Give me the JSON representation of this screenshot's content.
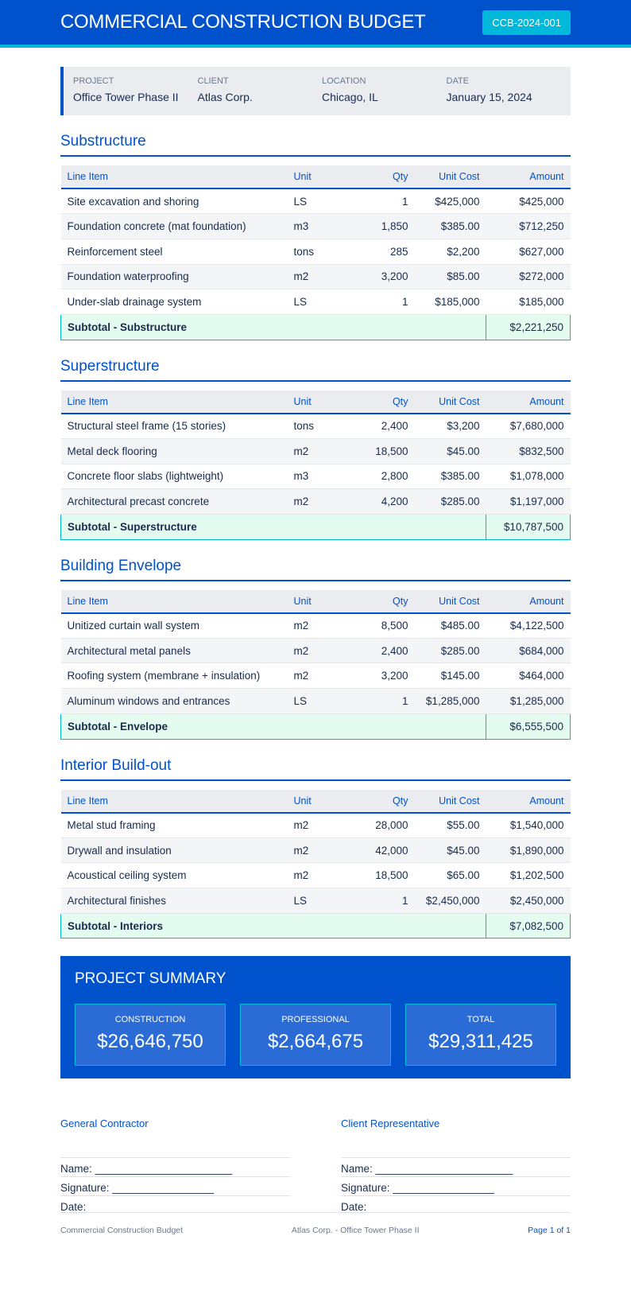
{
  "header": {
    "title": "COMMERCIAL CONSTRUCTION BUDGET",
    "doc_id": "CCB-2024-001"
  },
  "info": [
    {
      "label": "PROJECT",
      "value": "Office Tower Phase II"
    },
    {
      "label": "CLIENT",
      "value": "Atlas Corp."
    },
    {
      "label": "LOCATION",
      "value": "Chicago, IL"
    },
    {
      "label": "DATE",
      "value": "January 15, 2024"
    }
  ],
  "columns": [
    "Line Item",
    "Unit",
    "Qty",
    "Unit Cost",
    "Amount"
  ],
  "sections": [
    {
      "title": "Substructure",
      "rows": [
        [
          "Site excavation and shoring",
          "LS",
          "1",
          "$425,000",
          "$425,000"
        ],
        [
          "Foundation concrete (mat foundation)",
          "m3",
          "1,850",
          "$385.00",
          "$712,250"
        ],
        [
          "Reinforcement steel",
          "tons",
          "285",
          "$2,200",
          "$627,000"
        ],
        [
          "Foundation waterproofing",
          "m2",
          "3,200",
          "$85.00",
          "$272,000"
        ],
        [
          "Under-slab drainage system",
          "LS",
          "1",
          "$185,000",
          "$185,000"
        ]
      ],
      "subtotal_label": "Subtotal - Substructure",
      "subtotal": "$2,221,250"
    },
    {
      "title": "Superstructure",
      "rows": [
        [
          "Structural steel frame (15 stories)",
          "tons",
          "2,400",
          "$3,200",
          "$7,680,000"
        ],
        [
          "Metal deck flooring",
          "m2",
          "18,500",
          "$45.00",
          "$832,500"
        ],
        [
          "Concrete floor slabs (lightweight)",
          "m3",
          "2,800",
          "$385.00",
          "$1,078,000"
        ],
        [
          "Architectural precast concrete",
          "m2",
          "4,200",
          "$285.00",
          "$1,197,000"
        ]
      ],
      "subtotal_label": "Subtotal - Superstructure",
      "subtotal": "$10,787,500"
    },
    {
      "title": "Building Envelope",
      "rows": [
        [
          "Unitized curtain wall system",
          "m2",
          "8,500",
          "$485.00",
          "$4,122,500"
        ],
        [
          "Architectural metal panels",
          "m2",
          "2,400",
          "$285.00",
          "$684,000"
        ],
        [
          "Roofing system (membrane + insulation)",
          "m2",
          "3,200",
          "$145.00",
          "$464,000"
        ],
        [
          "Aluminum windows and entrances",
          "LS",
          "1",
          "$1,285,000",
          "$1,285,000"
        ]
      ],
      "subtotal_label": "Subtotal - Envelope",
      "subtotal": "$6,555,500"
    },
    {
      "title": "Interior Build-out",
      "rows": [
        [
          "Metal stud framing",
          "m2",
          "28,000",
          "$55.00",
          "$1,540,000"
        ],
        [
          "Drywall and insulation",
          "m2",
          "42,000",
          "$45.00",
          "$1,890,000"
        ],
        [
          "Acoustical ceiling system",
          "m2",
          "18,500",
          "$65.00",
          "$1,202,500"
        ],
        [
          "Architectural finishes",
          "LS",
          "1",
          "$2,450,000",
          "$2,450,000"
        ]
      ],
      "subtotal_label": "Subtotal - Interiors",
      "subtotal": "$7,082,500"
    }
  ],
  "summary": {
    "title": "PROJECT SUMMARY",
    "cards": [
      {
        "label": "CONSTRUCTION",
        "value": "$26,646,750"
      },
      {
        "label": "PROFESSIONAL",
        "value": "$2,664,675"
      },
      {
        "label": "TOTAL",
        "value": "$29,311,425"
      }
    ]
  },
  "signatures": [
    {
      "title": "General Contractor",
      "lines": [
        "Name: _______________________",
        "Signature: _________________",
        "Date: _______________________"
      ]
    },
    {
      "title": "Client Representative",
      "lines": [
        "Name: _______________________",
        "Signature: _________________",
        "Date: _______________________"
      ]
    }
  ],
  "footer": {
    "left": "Commercial Construction Budget",
    "center": "Atlas Corp. - Office Tower Phase II",
    "right": "Page 1 of 1"
  }
}
